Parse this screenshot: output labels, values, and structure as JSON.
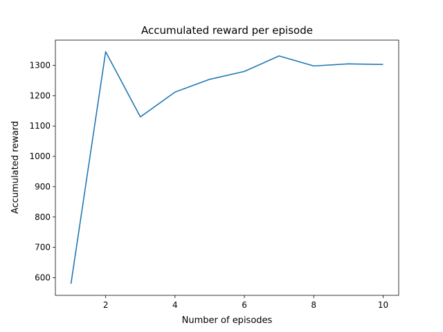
{
  "chart_data": {
    "type": "line",
    "title": "Accumulated reward per episode",
    "xlabel": "Number of episodes",
    "ylabel": "Accumulated reward",
    "x": [
      1,
      2,
      3,
      4,
      5,
      6,
      7,
      8,
      9,
      10
    ],
    "series": [
      {
        "values": [
          580,
          1345,
          1130,
          1212,
          1254,
          1280,
          1331,
          1298,
          1305,
          1303
        ],
        "color": "#1f77b4"
      }
    ],
    "xticks": [
      2,
      4,
      6,
      8,
      10
    ],
    "yticks": [
      600,
      700,
      800,
      900,
      1000,
      1100,
      1200,
      1300
    ],
    "xlim": [
      0.55,
      10.45
    ],
    "ylim": [
      541.75,
      1383.25
    ],
    "grid": false,
    "legend": "none"
  }
}
